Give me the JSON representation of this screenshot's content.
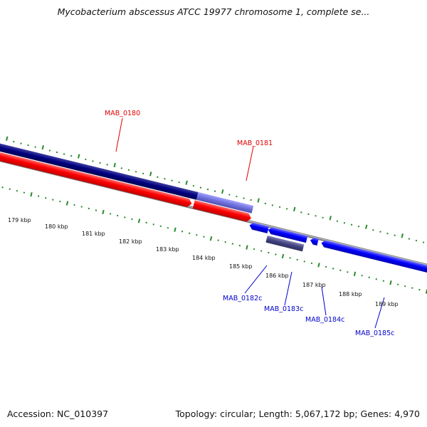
{
  "header": {
    "title": "Mycobacterium abscessus ATCC 19977 chromosome 1, complete se..."
  },
  "footer": {
    "accession": "Accession: NC_010397",
    "summary": "Topology: circular; Length: 5,067,172 bp; Genes: 4,970"
  },
  "map": {
    "kbp_labels": [
      "179 kbp",
      "180 kbp",
      "181 kbp",
      "182 kbp",
      "183 kbp",
      "184 kbp",
      "185 kbp",
      "186 kbp",
      "187 kbp",
      "188 kbp",
      "189 kbp"
    ],
    "forward_genes": [
      {
        "name": "MAB_0180",
        "color": "#e00000"
      },
      {
        "name": "MAB_0181",
        "color": "#e00000"
      }
    ],
    "reverse_genes": [
      {
        "name": "MAB_0182c",
        "color": "#0000cc"
      },
      {
        "name": "MAB_0183c",
        "color": "#0000cc"
      },
      {
        "name": "MAB_0184c",
        "color": "#0000cc"
      },
      {
        "name": "MAB_0185c",
        "color": "#0000cc"
      }
    ],
    "colors": {
      "forward_gene": "#ee0000",
      "reverse_gene": "#0000ee",
      "forward_cds": "#000080",
      "forward_cds_light": "#7070dd",
      "reverse_cds": "#404080",
      "tick": "#2a8a2a",
      "backbone": "#808080"
    }
  }
}
